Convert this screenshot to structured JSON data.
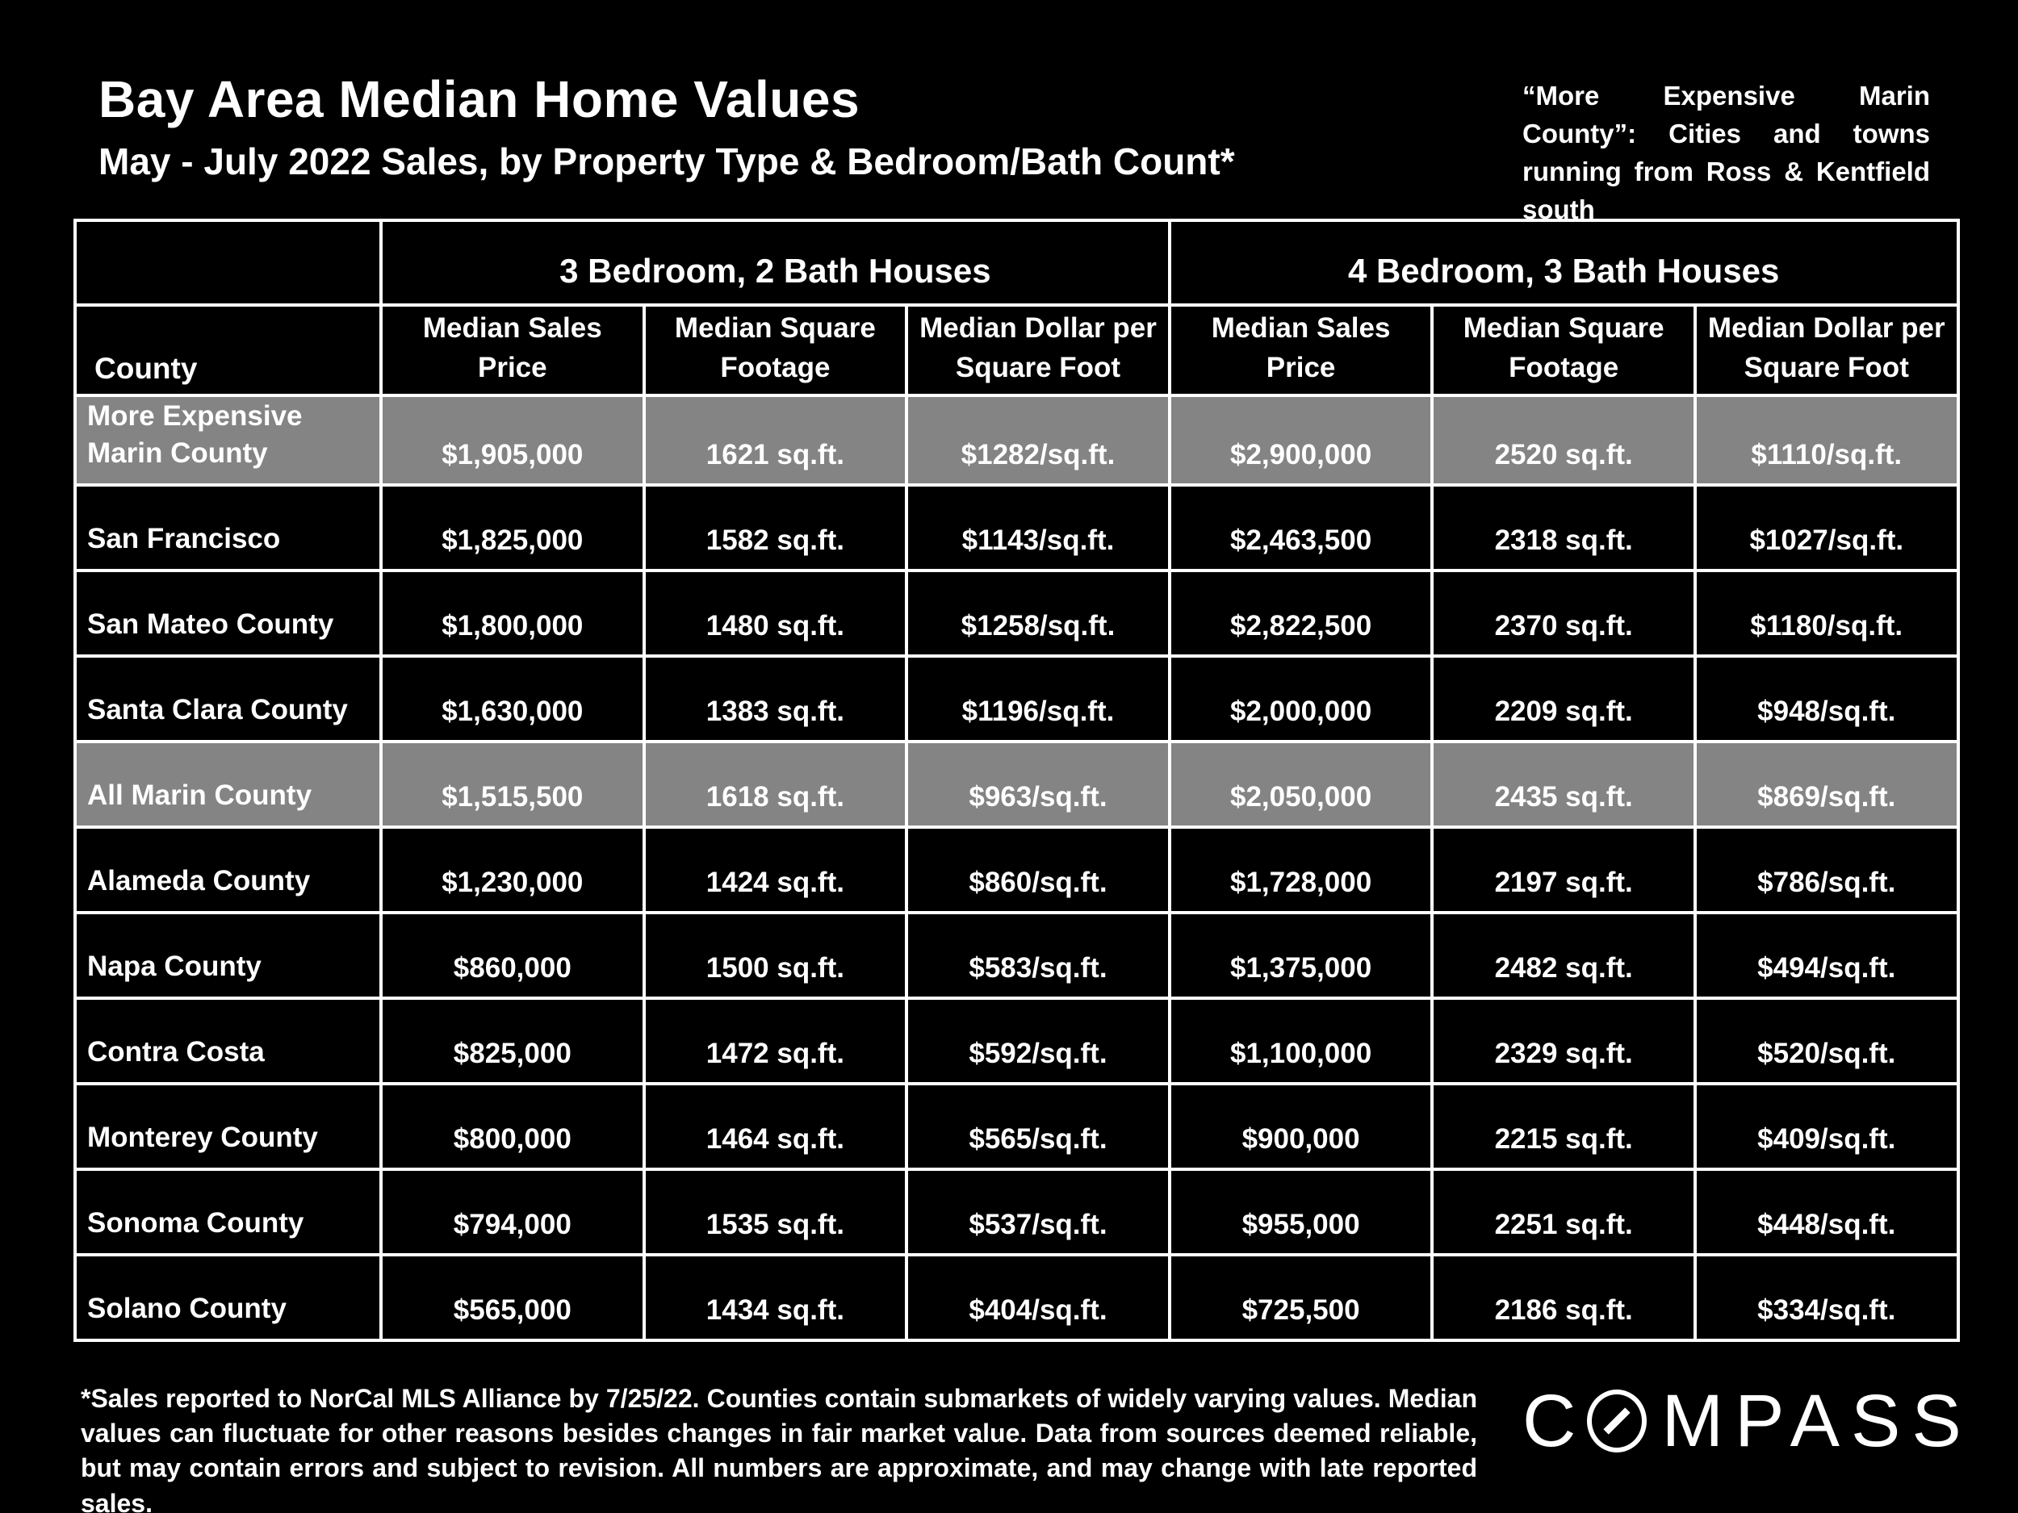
{
  "slide": {
    "title": "Bay Area Median Home Values",
    "subtitle": "May - July 2022 Sales, by Property Type & Bedroom/Bath Count*",
    "corner_note": "“More Expensive Marin County”: Cities and towns running from Ross & Kentfield south"
  },
  "table": {
    "group_headers": [
      "3 Bedroom, 2 Bath Houses",
      "4 Bedroom, 3 Bath Houses"
    ],
    "county_header": "County",
    "column_headers": [
      "Median Sales Price",
      "Median Square Footage",
      "Median Dollar per Square Foot",
      "Median Sales Price",
      "Median Square Footage",
      "Median Dollar per Square Foot"
    ],
    "rows": [
      {
        "county": "More Expensive Marin County",
        "highlight": true,
        "cells": [
          "$1,905,000",
          "1621 sq.ft.",
          "$1282/sq.ft.",
          "$2,900,000",
          "2520 sq.ft.",
          "$1110/sq.ft."
        ]
      },
      {
        "county": "San Francisco",
        "highlight": false,
        "cells": [
          "$1,825,000",
          "1582 sq.ft.",
          "$1143/sq.ft.",
          "$2,463,500",
          "2318 sq.ft.",
          "$1027/sq.ft."
        ]
      },
      {
        "county": "San Mateo County",
        "highlight": false,
        "cells": [
          "$1,800,000",
          "1480 sq.ft.",
          "$1258/sq.ft.",
          "$2,822,500",
          "2370 sq.ft.",
          "$1180/sq.ft."
        ]
      },
      {
        "county": "Santa Clara County",
        "highlight": false,
        "cells": [
          "$1,630,000",
          "1383 sq.ft.",
          "$1196/sq.ft.",
          "$2,000,000",
          "2209 sq.ft.",
          "$948/sq.ft."
        ]
      },
      {
        "county": "All Marin County",
        "highlight": true,
        "cells": [
          "$1,515,500",
          "1618 sq.ft.",
          "$963/sq.ft.",
          "$2,050,000",
          "2435 sq.ft.",
          "$869/sq.ft."
        ]
      },
      {
        "county": "Alameda County",
        "highlight": false,
        "cells": [
          "$1,230,000",
          "1424 sq.ft.",
          "$860/sq.ft.",
          "$1,728,000",
          "2197 sq.ft.",
          "$786/sq.ft."
        ]
      },
      {
        "county": "Napa County",
        "highlight": false,
        "cells": [
          "$860,000",
          "1500 sq.ft.",
          "$583/sq.ft.",
          "$1,375,000",
          "2482 sq.ft.",
          "$494/sq.ft."
        ]
      },
      {
        "county": "Contra Costa",
        "highlight": false,
        "cells": [
          "$825,000",
          "1472 sq.ft.",
          "$592/sq.ft.",
          "$1,100,000",
          "2329 sq.ft.",
          "$520/sq.ft."
        ]
      },
      {
        "county": "Monterey County",
        "highlight": false,
        "cells": [
          "$800,000",
          "1464 sq.ft.",
          "$565/sq.ft.",
          "$900,000",
          "2215 sq.ft.",
          "$409/sq.ft."
        ]
      },
      {
        "county": "Sonoma County",
        "highlight": false,
        "cells": [
          "$794,000",
          "1535 sq.ft.",
          "$537/sq.ft.",
          "$955,000",
          "2251 sq.ft.",
          "$448/sq.ft."
        ]
      },
      {
        "county": "Solano County",
        "highlight": false,
        "cells": [
          "$565,000",
          "1434 sq.ft.",
          "$404/sq.ft.",
          "$725,500",
          "2186 sq.ft.",
          "$334/sq.ft."
        ]
      }
    ]
  },
  "footer": {
    "disclaimer": "*Sales reported to NorCal MLS Alliance by 7/25/22. Counties contain submarkets of widely varying values. Median values can fluctuate for other reasons besides changes in fair market value. Data from sources deemed reliable, but may contain errors and subject to revision.  All numbers are approximate, and may change with late reported sales.",
    "brand": "COMPASS",
    "brand_letter_before_symbol": "C",
    "brand_letters_after_symbol": "MPASS"
  },
  "colors": {
    "background": "#000000",
    "text": "#ffffff",
    "highlight_row": "#848484",
    "table_border": "#ffffff"
  }
}
